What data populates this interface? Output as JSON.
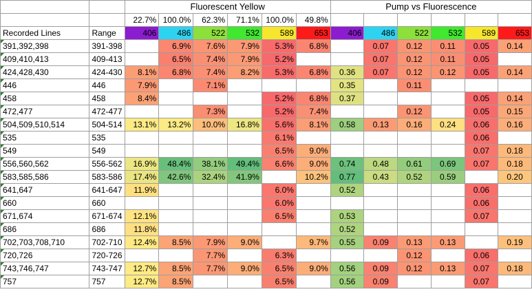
{
  "sheet": {
    "title_left": "Fluorescent Yellow",
    "title_right": "Pump vs Fluorescence",
    "headers": {
      "recorded": "Recorded Lines",
      "range": "Range"
    },
    "percent_row": [
      "22.7%",
      "100.0%",
      "62.3%",
      "71.1%",
      "100.0%",
      "49.8%"
    ],
    "wavelengths": [
      "406",
      "486",
      "522",
      "532",
      "589",
      "653"
    ],
    "header_colors": [
      "#8c1ccf",
      "#2ed3f2",
      "#8ce03a",
      "#40e82f",
      "#f6e62c",
      "#ff1a1a"
    ],
    "rows": [
      {
        "lines": "391,392,398",
        "range": "391-398",
        "fl": [
          "",
          "6.9%",
          "7.6%",
          "7.9%",
          "5.3%",
          "6.8%"
        ],
        "pv": [
          "",
          "0.07",
          "0.12",
          "0.11",
          "0.05",
          "0.14"
        ]
      },
      {
        "lines": "409,410,413",
        "range": "409-413",
        "fl": [
          "",
          "6.5%",
          "7.4%",
          "7.9%",
          "5.2%",
          ""
        ],
        "pv": [
          "",
          "0.07",
          "0.12",
          "0.11",
          "0.05",
          ""
        ]
      },
      {
        "lines": "424,428,430",
        "range": "424-430",
        "fl": [
          "8.1%",
          "6.8%",
          "7.4%",
          "8.2%",
          "5.3%",
          "6.8%"
        ],
        "pv": [
          "0.36",
          "0.07",
          "0.12",
          "0.12",
          "0.05",
          "0.14"
        ]
      },
      {
        "lines": "446",
        "range": "446",
        "fl": [
          "7.9%",
          "",
          "7.1%",
          "",
          "",
          ""
        ],
        "pv": [
          "0.35",
          "",
          "0.11",
          "",
          "",
          ""
        ]
      },
      {
        "lines": "458",
        "range": "458",
        "fl": [
          "8.4%",
          "",
          "",
          "",
          "5.2%",
          "6.8%"
        ],
        "pv": [
          "0.37",
          "",
          "",
          "",
          "0.05",
          "0.14"
        ]
      },
      {
        "lines": "472,477",
        "range": "472-477",
        "fl": [
          "",
          "",
          "7.3%",
          "",
          "5.2%",
          "7.4%"
        ],
        "pv": [
          "",
          "",
          "0.12",
          "",
          "0.05",
          "0.15"
        ]
      },
      {
        "lines": "504,509,510,514",
        "range": "504-514",
        "fl": [
          "13.1%",
          "13.2%",
          "10.0%",
          "16.8%",
          "5.6%",
          "8.1%"
        ],
        "pv": [
          "0.58",
          "0.13",
          "0.16",
          "0.24",
          "0.06",
          "0.16"
        ]
      },
      {
        "lines": "535",
        "range": "535",
        "fl": [
          "",
          "",
          "",
          "",
          "6.1%",
          ""
        ],
        "pv": [
          "",
          "",
          "",
          "",
          "0.06",
          ""
        ]
      },
      {
        "lines": "549",
        "range": "549",
        "fl": [
          "",
          "",
          "",
          "",
          "6.5%",
          "9.0%"
        ],
        "pv": [
          "",
          "",
          "",
          "",
          "0.07",
          "0.18"
        ]
      },
      {
        "lines": "556,560,562",
        "range": "556-562",
        "fl": [
          "16.9%",
          "48.4%",
          "38.1%",
          "49.4%",
          "6.6%",
          "9.0%"
        ],
        "pv": [
          "0.74",
          "0.48",
          "0.61",
          "0.69",
          "0.07",
          "0.18"
        ]
      },
      {
        "lines": "583,585,586",
        "range": "583-586",
        "fl": [
          "17.4%",
          "42.6%",
          "32.4%",
          "41.9%",
          "",
          "10.2%"
        ],
        "pv": [
          "0.77",
          "0.43",
          "0.52",
          "0.59",
          "",
          "0.20"
        ]
      },
      {
        "lines": "641,647",
        "range": "641-647",
        "fl": [
          "11.9%",
          "",
          "",
          "",
          "6.0%",
          ""
        ],
        "pv": [
          "0.52",
          "",
          "",
          "",
          "0.06",
          ""
        ]
      },
      {
        "lines": "660",
        "range": "660",
        "fl": [
          "",
          "",
          "",
          "",
          "6.0%",
          ""
        ],
        "pv": [
          "",
          "",
          "",
          "",
          "0.06",
          ""
        ]
      },
      {
        "lines": "671,674",
        "range": "671-674",
        "fl": [
          "12.1%",
          "",
          "",
          "",
          "6.5%",
          ""
        ],
        "pv": [
          "0.53",
          "",
          "",
          "",
          "0.07",
          ""
        ]
      },
      {
        "lines": "686",
        "range": "686",
        "fl": [
          "11.8%",
          "",
          "",
          "",
          "",
          ""
        ],
        "pv": [
          "0.52",
          "",
          "",
          "",
          "",
          ""
        ]
      },
      {
        "lines": "702,703,708,710",
        "range": "702-710",
        "fl": [
          "12.4%",
          "8.5%",
          "7.9%",
          "9.0%",
          "",
          "9.7%"
        ],
        "pv": [
          "0.55",
          "0.09",
          "0.13",
          "0.13",
          "",
          "0.19"
        ]
      },
      {
        "lines": "720,726",
        "range": "720-726",
        "fl": [
          "",
          "",
          "7.7%",
          "",
          "6.3%",
          ""
        ],
        "pv": [
          "",
          "",
          "0.12",
          "",
          "0.06",
          ""
        ]
      },
      {
        "lines": "743,746,747",
        "range": "743-747",
        "fl": [
          "12.7%",
          "8.5%",
          "7.7%",
          "9.0%",
          "6.5%",
          "9.0%"
        ],
        "pv": [
          "0.56",
          "0.09",
          "0.12",
          "0.13",
          "0.07",
          "0.18"
        ]
      },
      {
        "lines": "757",
        "range": "757",
        "fl": [
          "12.7%",
          "8.5%",
          "",
          "",
          "6.5%",
          ""
        ],
        "pv": [
          "0.56",
          "0.09",
          "",
          "",
          "0.07",
          ""
        ]
      }
    ]
  }
}
